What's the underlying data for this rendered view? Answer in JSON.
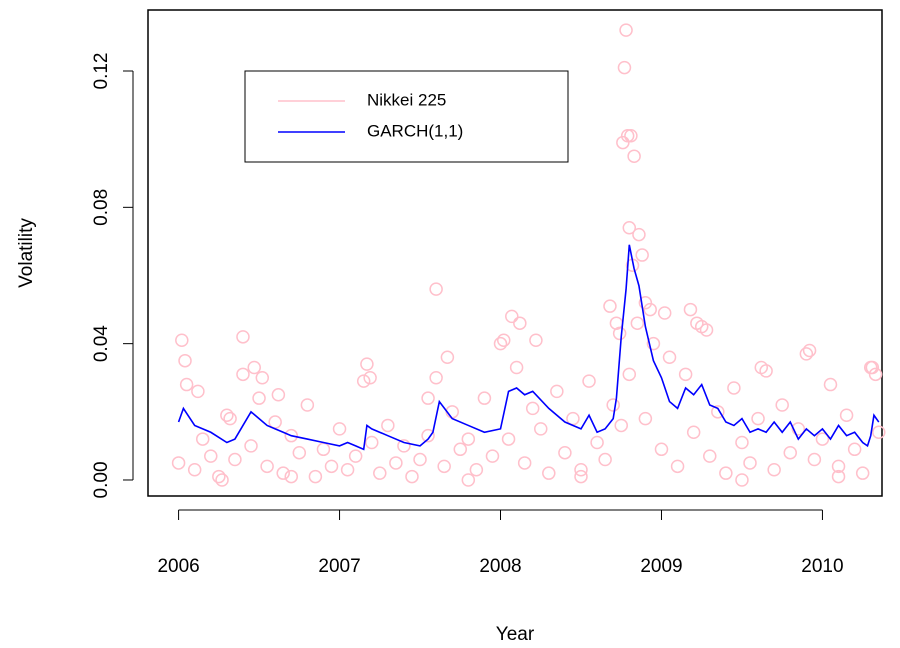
{
  "chart_data": {
    "type": "scatter",
    "xlabel": "Year",
    "ylabel": "Volatility",
    "xlim": [
      2005.81,
      2010.37
    ],
    "ylim": [
      -0.0047,
      0.1379
    ],
    "xticks": [
      2006,
      2007,
      2008,
      2009,
      2010
    ],
    "yticks": [
      {
        "value": 0,
        "label": "0.00"
      },
      0.04,
      0.08,
      0.12
    ],
    "legend": "top-left",
    "series": [
      {
        "name": "Nikkei 225",
        "color": "#ffc0cb",
        "type": "scatter",
        "x": [
          2006.0,
          2006.05,
          2006.1,
          2006.15,
          2006.2,
          2006.25,
          2006.3,
          2006.35,
          2006.4,
          2006.45,
          2006.5,
          2006.55,
          2006.6,
          2006.65,
          2006.7,
          2006.75,
          2006.8,
          2006.85,
          2006.9,
          2006.95,
          2007.0,
          2007.05,
          2007.1,
          2007.15,
          2007.2,
          2007.25,
          2007.3,
          2007.35,
          2007.4,
          2007.45,
          2007.5,
          2007.55,
          2007.6,
          2007.65,
          2007.7,
          2007.75,
          2007.8,
          2007.85,
          2007.9,
          2007.95,
          2008.0,
          2008.05,
          2008.1,
          2008.15,
          2008.2,
          2008.25,
          2008.3,
          2008.35,
          2008.4,
          2008.45,
          2008.5,
          2008.55,
          2008.6,
          2008.65,
          2008.7,
          2008.75,
          2008.8,
          2008.85,
          2008.9,
          2008.95,
          2009.0,
          2009.05,
          2009.1,
          2009.15,
          2009.2,
          2009.25,
          2009.3,
          2009.35,
          2009.4,
          2009.45,
          2009.5,
          2009.55,
          2009.6,
          2009.65,
          2009.7,
          2009.75,
          2009.8,
          2009.85,
          2009.9,
          2009.95,
          2010.0,
          2010.05,
          2010.1,
          2010.15,
          2010.2,
          2010.25,
          2010.3,
          2010.35,
          2006.02,
          2006.04,
          2006.4,
          2006.47,
          2006.52,
          2006.32,
          2006.12,
          2006.62,
          2007.17,
          2007.19,
          2007.6,
          2007.67,
          2007.55,
          2008.02,
          2008.07,
          2008.12,
          2008.22,
          2008.68,
          2008.72,
          2008.74,
          2008.76,
          2008.77,
          2008.78,
          2008.79,
          2008.81,
          2008.83,
          2008.8,
          2008.86,
          2008.88,
          2008.82,
          2008.9,
          2008.93,
          2009.02,
          2009.18,
          2009.22,
          2009.28,
          2009.62,
          2009.92,
          2010.31,
          2010.33,
          2009.5,
          2008.5,
          2007.8,
          2006.7,
          2010.1,
          2006.27
        ],
        "values": [
          0.005,
          0.028,
          0.003,
          0.012,
          0.007,
          0.001,
          0.019,
          0.006,
          0.031,
          0.01,
          0.024,
          0.004,
          0.017,
          0.002,
          0.013,
          0.008,
          0.022,
          0.001,
          0.009,
          0.004,
          0.015,
          0.003,
          0.007,
          0.029,
          0.011,
          0.002,
          0.016,
          0.005,
          0.01,
          0.001,
          0.006,
          0.013,
          0.03,
          0.004,
          0.02,
          0.009,
          0.012,
          0.003,
          0.024,
          0.007,
          0.04,
          0.012,
          0.033,
          0.005,
          0.021,
          0.015,
          0.002,
          0.026,
          0.008,
          0.018,
          0.003,
          0.029,
          0.011,
          0.006,
          0.022,
          0.016,
          0.031,
          0.046,
          0.018,
          0.04,
          0.009,
          0.036,
          0.004,
          0.031,
          0.014,
          0.045,
          0.007,
          0.02,
          0.002,
          0.027,
          0.011,
          0.005,
          0.018,
          0.032,
          0.003,
          0.022,
          0.008,
          0.015,
          0.037,
          0.006,
          0.012,
          0.028,
          0.004,
          0.019,
          0.009,
          0.002,
          0.033,
          0.014,
          0.041,
          0.035,
          0.042,
          0.033,
          0.03,
          0.018,
          0.026,
          0.025,
          0.034,
          0.03,
          0.056,
          0.036,
          0.024,
          0.041,
          0.048,
          0.046,
          0.041,
          0.051,
          0.046,
          0.043,
          0.099,
          0.121,
          0.132,
          0.101,
          0.101,
          0.095,
          0.074,
          0.072,
          0.066,
          0.063,
          0.052,
          0.05,
          0.049,
          0.05,
          0.046,
          0.044,
          0.033,
          0.038,
          0.033,
          0.031,
          0.0,
          0.001,
          0.0,
          0.001,
          0.001,
          0.0
        ]
      },
      {
        "name": "GARCH(1,1)",
        "color": "#0000ff",
        "type": "line",
        "x": [
          2006.0,
          2006.03,
          2006.1,
          2006.2,
          2006.3,
          2006.35,
          2006.4,
          2006.45,
          2006.5,
          2006.55,
          2006.6,
          2006.65,
          2006.7,
          2006.8,
          2006.9,
          2007.0,
          2007.05,
          2007.1,
          2007.15,
          2007.17,
          2007.2,
          2007.3,
          2007.4,
          2007.5,
          2007.55,
          2007.58,
          2007.62,
          2007.7,
          2007.8,
          2007.9,
          2008.0,
          2008.05,
          2008.1,
          2008.15,
          2008.2,
          2008.3,
          2008.4,
          2008.5,
          2008.55,
          2008.6,
          2008.65,
          2008.7,
          2008.72,
          2008.75,
          2008.78,
          2008.8,
          2008.83,
          2008.86,
          2008.9,
          2008.95,
          2009.0,
          2009.05,
          2009.1,
          2009.15,
          2009.2,
          2009.25,
          2009.3,
          2009.35,
          2009.4,
          2009.45,
          2009.5,
          2009.55,
          2009.6,
          2009.65,
          2009.7,
          2009.75,
          2009.8,
          2009.85,
          2009.9,
          2009.95,
          2010.0,
          2010.05,
          2010.1,
          2010.15,
          2010.2,
          2010.25,
          2010.28,
          2010.3,
          2010.32,
          2010.35
        ],
        "values": [
          0.017,
          0.021,
          0.016,
          0.014,
          0.011,
          0.012,
          0.016,
          0.02,
          0.018,
          0.016,
          0.015,
          0.014,
          0.013,
          0.012,
          0.011,
          0.01,
          0.011,
          0.01,
          0.009,
          0.016,
          0.015,
          0.013,
          0.011,
          0.01,
          0.012,
          0.014,
          0.023,
          0.018,
          0.016,
          0.014,
          0.015,
          0.026,
          0.027,
          0.025,
          0.026,
          0.021,
          0.017,
          0.015,
          0.019,
          0.014,
          0.015,
          0.018,
          0.024,
          0.042,
          0.056,
          0.069,
          0.062,
          0.057,
          0.045,
          0.035,
          0.03,
          0.023,
          0.021,
          0.027,
          0.025,
          0.028,
          0.022,
          0.021,
          0.017,
          0.016,
          0.018,
          0.014,
          0.015,
          0.014,
          0.017,
          0.014,
          0.017,
          0.012,
          0.015,
          0.013,
          0.015,
          0.012,
          0.016,
          0.013,
          0.014,
          0.011,
          0.01,
          0.013,
          0.019,
          0.017
        ]
      }
    ]
  }
}
